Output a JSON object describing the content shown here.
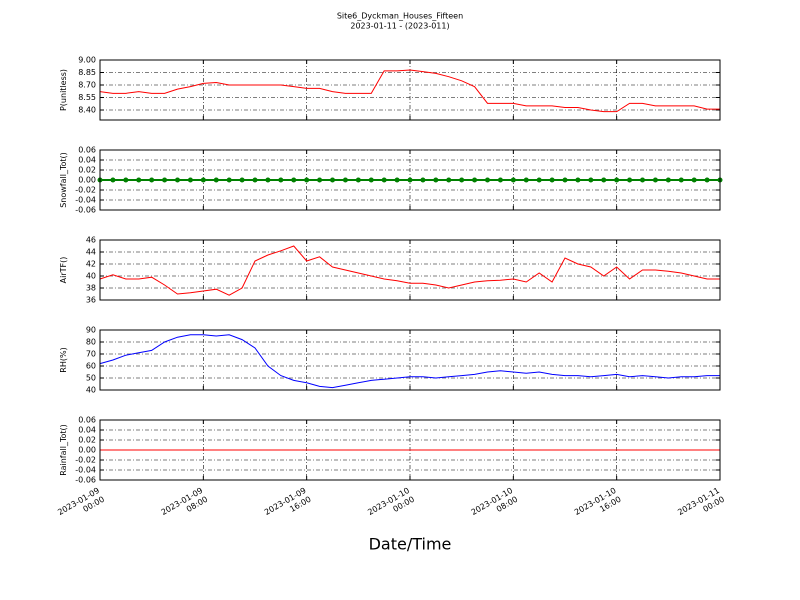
{
  "chart_data": [
    {
      "type": "line",
      "title": "Site6_Dyckman_Houses_Fifteen",
      "subtitle": "2023-01-11 - (2023-011)",
      "ylabel": "P(unitless)",
      "color": "#ff0000",
      "x": [
        "2023-01-09 00:00",
        "2023-01-09 01:00",
        "2023-01-09 02:00",
        "2023-01-09 03:00",
        "2023-01-09 04:00",
        "2023-01-09 05:00",
        "2023-01-09 06:00",
        "2023-01-09 07:00",
        "2023-01-09 08:00",
        "2023-01-09 09:00",
        "2023-01-09 10:00",
        "2023-01-09 11:00",
        "2023-01-09 12:00",
        "2023-01-09 13:00",
        "2023-01-09 14:00",
        "2023-01-09 15:00",
        "2023-01-09 16:00",
        "2023-01-09 17:00",
        "2023-01-09 18:00",
        "2023-01-09 19:00",
        "2023-01-09 20:00",
        "2023-01-09 21:00",
        "2023-01-09 22:00",
        "2023-01-09 23:00",
        "2023-01-10 00:00",
        "2023-01-10 01:00",
        "2023-01-10 02:00",
        "2023-01-10 03:00",
        "2023-01-10 04:00",
        "2023-01-10 05:00",
        "2023-01-10 06:00",
        "2023-01-10 07:00",
        "2023-01-10 08:00",
        "2023-01-10 09:00",
        "2023-01-10 10:00",
        "2023-01-10 11:00",
        "2023-01-10 12:00",
        "2023-01-10 13:00",
        "2023-01-10 14:00",
        "2023-01-10 15:00",
        "2023-01-10 16:00",
        "2023-01-10 17:00",
        "2023-01-10 18:00",
        "2023-01-10 19:00",
        "2023-01-10 20:00",
        "2023-01-10 21:00",
        "2023-01-10 22:00",
        "2023-01-10 23:00",
        "2023-01-11 00:00"
      ],
      "values": [
        8.62,
        8.6,
        8.6,
        8.62,
        8.6,
        8.6,
        8.65,
        8.68,
        8.72,
        8.73,
        8.7,
        8.7,
        8.7,
        8.7,
        8.7,
        8.68,
        8.66,
        8.66,
        8.62,
        8.6,
        8.6,
        8.6,
        8.87,
        8.87,
        8.88,
        8.86,
        8.84,
        8.8,
        8.75,
        8.68,
        8.48,
        8.48,
        8.48,
        8.45,
        8.45,
        8.45,
        8.43,
        8.43,
        8.4,
        8.38,
        8.38,
        8.48,
        8.48,
        8.45,
        8.45,
        8.45,
        8.45,
        8.41,
        8.41
      ],
      "ylim": [
        8.28,
        9.0
      ],
      "yticks": [
        {
          "value": 8.4,
          "label": "8.40"
        },
        8.55,
        {
          "value": 8.7,
          "label": "8.70"
        },
        8.85,
        {
          "value": 9.0,
          "label": "9.00"
        }
      ],
      "xlim": [
        "2023-01-09 00:00",
        "2023-01-11 00:00"
      ],
      "xticks": [
        "2023-01-09 00:00",
        "2023-01-09 08:00",
        "2023-01-09 16:00",
        "2023-01-10 00:00",
        "2023-01-10 08:00",
        "2023-01-10 16:00",
        "2023-01-11 00:00"
      ],
      "grid": true
    },
    {
      "type": "line",
      "ylabel": "Snowfall_Tot()",
      "color": "#008000",
      "marker": "o",
      "x": [
        "2023-01-09 00:00",
        "2023-01-09 01:00",
        "2023-01-09 02:00",
        "2023-01-09 03:00",
        "2023-01-09 04:00",
        "2023-01-09 05:00",
        "2023-01-09 06:00",
        "2023-01-09 07:00",
        "2023-01-09 08:00",
        "2023-01-09 09:00",
        "2023-01-09 10:00",
        "2023-01-09 11:00",
        "2023-01-09 12:00",
        "2023-01-09 13:00",
        "2023-01-09 14:00",
        "2023-01-09 15:00",
        "2023-01-09 16:00",
        "2023-01-09 17:00",
        "2023-01-09 18:00",
        "2023-01-09 19:00",
        "2023-01-09 20:00",
        "2023-01-09 21:00",
        "2023-01-09 22:00",
        "2023-01-09 23:00",
        "2023-01-10 00:00",
        "2023-01-10 01:00",
        "2023-01-10 02:00",
        "2023-01-10 03:00",
        "2023-01-10 04:00",
        "2023-01-10 05:00",
        "2023-01-10 06:00",
        "2023-01-10 07:00",
        "2023-01-10 08:00",
        "2023-01-10 09:00",
        "2023-01-10 10:00",
        "2023-01-10 11:00",
        "2023-01-10 12:00",
        "2023-01-10 13:00",
        "2023-01-10 14:00",
        "2023-01-10 15:00",
        "2023-01-10 16:00",
        "2023-01-10 17:00",
        "2023-01-10 18:00",
        "2023-01-10 19:00",
        "2023-01-10 20:00",
        "2023-01-10 21:00",
        "2023-01-10 22:00",
        "2023-01-10 23:00",
        "2023-01-11 00:00"
      ],
      "values": [
        0,
        0,
        0,
        0,
        0,
        0,
        0,
        0,
        0,
        0,
        0,
        0,
        0,
        0,
        0,
        0,
        0,
        0,
        0,
        0,
        0,
        0,
        0,
        0,
        0,
        0,
        0,
        0,
        0,
        0,
        0,
        0,
        0,
        0,
        0,
        0,
        0,
        0,
        0,
        0,
        0,
        0,
        0,
        0,
        0,
        0,
        0,
        0,
        0
      ],
      "ylim": [
        -0.06,
        0.06
      ],
      "yticks": [
        -0.06,
        -0.04,
        -0.02,
        {
          "value": 0,
          "label": "0.00"
        },
        0.02,
        0.04,
        0.06
      ],
      "xlim": [
        "2023-01-09 00:00",
        "2023-01-11 00:00"
      ],
      "xticks": [
        "2023-01-09 00:00",
        "2023-01-09 08:00",
        "2023-01-09 16:00",
        "2023-01-10 00:00",
        "2023-01-10 08:00",
        "2023-01-10 16:00",
        "2023-01-11 00:00"
      ],
      "grid": true
    },
    {
      "type": "line",
      "ylabel": "AirTF()",
      "color": "#ff0000",
      "x": [
        "2023-01-09 00:00",
        "2023-01-09 01:00",
        "2023-01-09 02:00",
        "2023-01-09 03:00",
        "2023-01-09 04:00",
        "2023-01-09 05:00",
        "2023-01-09 06:00",
        "2023-01-09 07:00",
        "2023-01-09 08:00",
        "2023-01-09 09:00",
        "2023-01-09 10:00",
        "2023-01-09 11:00",
        "2023-01-09 12:00",
        "2023-01-09 13:00",
        "2023-01-09 14:00",
        "2023-01-09 15:00",
        "2023-01-09 16:00",
        "2023-01-09 17:00",
        "2023-01-09 18:00",
        "2023-01-09 19:00",
        "2023-01-09 20:00",
        "2023-01-09 21:00",
        "2023-01-09 22:00",
        "2023-01-09 23:00",
        "2023-01-10 00:00",
        "2023-01-10 01:00",
        "2023-01-10 02:00",
        "2023-01-10 03:00",
        "2023-01-10 04:00",
        "2023-01-10 05:00",
        "2023-01-10 06:00",
        "2023-01-10 07:00",
        "2023-01-10 08:00",
        "2023-01-10 09:00",
        "2023-01-10 10:00",
        "2023-01-10 11:00",
        "2023-01-10 12:00",
        "2023-01-10 13:00",
        "2023-01-10 14:00",
        "2023-01-10 15:00",
        "2023-01-10 16:00",
        "2023-01-10 17:00",
        "2023-01-10 18:00",
        "2023-01-10 19:00",
        "2023-01-10 20:00",
        "2023-01-10 21:00",
        "2023-01-10 22:00",
        "2023-01-10 23:00",
        "2023-01-11 00:00"
      ],
      "values": [
        39.5,
        40.2,
        39.5,
        39.5,
        39.8,
        38.5,
        37,
        37.2,
        37.5,
        37.8,
        36.8,
        38,
        42.5,
        43.5,
        44.2,
        45,
        42.5,
        43.2,
        41.5,
        41,
        40.5,
        40,
        39.5,
        39.2,
        38.8,
        38.8,
        38.5,
        38,
        38.5,
        39,
        39.2,
        39.3,
        39.5,
        39,
        40.5,
        39,
        43,
        42,
        41.5,
        40,
        41.5,
        39.5,
        41,
        41,
        40.8,
        40.5,
        40,
        39.5,
        39.5
      ],
      "ylim": [
        36,
        46
      ],
      "yticks": [
        36,
        38,
        40,
        42,
        44,
        46
      ],
      "xlim": [
        "2023-01-09 00:00",
        "2023-01-11 00:00"
      ],
      "xticks": [
        "2023-01-09 00:00",
        "2023-01-09 08:00",
        "2023-01-09 16:00",
        "2023-01-10 00:00",
        "2023-01-10 08:00",
        "2023-01-10 16:00",
        "2023-01-11 00:00"
      ],
      "grid": true
    },
    {
      "type": "line",
      "ylabel": "RH(%)",
      "color": "#0000ff",
      "x": [
        "2023-01-09 00:00",
        "2023-01-09 01:00",
        "2023-01-09 02:00",
        "2023-01-09 03:00",
        "2023-01-09 04:00",
        "2023-01-09 05:00",
        "2023-01-09 06:00",
        "2023-01-09 07:00",
        "2023-01-09 08:00",
        "2023-01-09 09:00",
        "2023-01-09 10:00",
        "2023-01-09 11:00",
        "2023-01-09 12:00",
        "2023-01-09 13:00",
        "2023-01-09 14:00",
        "2023-01-09 15:00",
        "2023-01-09 16:00",
        "2023-01-09 17:00",
        "2023-01-09 18:00",
        "2023-01-09 19:00",
        "2023-01-09 20:00",
        "2023-01-09 21:00",
        "2023-01-09 22:00",
        "2023-01-09 23:00",
        "2023-01-10 00:00",
        "2023-01-10 01:00",
        "2023-01-10 02:00",
        "2023-01-10 03:00",
        "2023-01-10 04:00",
        "2023-01-10 05:00",
        "2023-01-10 06:00",
        "2023-01-10 07:00",
        "2023-01-10 08:00",
        "2023-01-10 09:00",
        "2023-01-10 10:00",
        "2023-01-10 11:00",
        "2023-01-10 12:00",
        "2023-01-10 13:00",
        "2023-01-10 14:00",
        "2023-01-10 15:00",
        "2023-01-10 16:00",
        "2023-01-10 17:00",
        "2023-01-10 18:00",
        "2023-01-10 19:00",
        "2023-01-10 20:00",
        "2023-01-10 21:00",
        "2023-01-10 22:00",
        "2023-01-10 23:00",
        "2023-01-11 00:00"
      ],
      "values": [
        62,
        65,
        69,
        71,
        73,
        80,
        84,
        86,
        86,
        85,
        86,
        82,
        75,
        60,
        52,
        48,
        46,
        43,
        42,
        44,
        46,
        48,
        49,
        50,
        51,
        51,
        50,
        51,
        52,
        53,
        55,
        56,
        55,
        54,
        55,
        53,
        52,
        52,
        51,
        52,
        53,
        51,
        52,
        51,
        50,
        51,
        51,
        52,
        52
      ],
      "ylim": [
        40,
        90
      ],
      "yticks": [
        40,
        50,
        60,
        70,
        80,
        90
      ],
      "xlim": [
        "2023-01-09 00:00",
        "2023-01-11 00:00"
      ],
      "xticks": [
        "2023-01-09 00:00",
        "2023-01-09 08:00",
        "2023-01-09 16:00",
        "2023-01-10 00:00",
        "2023-01-10 08:00",
        "2023-01-10 16:00",
        "2023-01-11 00:00"
      ],
      "grid": true
    },
    {
      "type": "line",
      "ylabel": "Rainfall_Tot()",
      "xlabel": "Date/Time",
      "color": "#ff0000",
      "x": [
        "2023-01-09 00:00",
        "2023-01-09 01:00",
        "2023-01-09 02:00",
        "2023-01-09 03:00",
        "2023-01-09 04:00",
        "2023-01-09 05:00",
        "2023-01-09 06:00",
        "2023-01-09 07:00",
        "2023-01-09 08:00",
        "2023-01-09 09:00",
        "2023-01-09 10:00",
        "2023-01-09 11:00",
        "2023-01-09 12:00",
        "2023-01-09 13:00",
        "2023-01-09 14:00",
        "2023-01-09 15:00",
        "2023-01-09 16:00",
        "2023-01-09 17:00",
        "2023-01-09 18:00",
        "2023-01-09 19:00",
        "2023-01-09 20:00",
        "2023-01-09 21:00",
        "2023-01-09 22:00",
        "2023-01-09 23:00",
        "2023-01-10 00:00",
        "2023-01-10 01:00",
        "2023-01-10 02:00",
        "2023-01-10 03:00",
        "2023-01-10 04:00",
        "2023-01-10 05:00",
        "2023-01-10 06:00",
        "2023-01-10 07:00",
        "2023-01-10 08:00",
        "2023-01-10 09:00",
        "2023-01-10 10:00",
        "2023-01-10 11:00",
        "2023-01-10 12:00",
        "2023-01-10 13:00",
        "2023-01-10 14:00",
        "2023-01-10 15:00",
        "2023-01-10 16:00",
        "2023-01-10 17:00",
        "2023-01-10 18:00",
        "2023-01-10 19:00",
        "2023-01-10 20:00",
        "2023-01-10 21:00",
        "2023-01-10 22:00",
        "2023-01-10 23:00",
        "2023-01-11 00:00"
      ],
      "values": [
        0,
        0,
        0,
        0,
        0,
        0,
        0,
        0,
        0,
        0,
        0,
        0,
        0,
        0,
        0,
        0,
        0,
        0,
        0,
        0,
        0,
        0,
        0,
        0,
        0,
        0,
        0,
        0,
        0,
        0,
        0,
        0,
        0,
        0,
        0,
        0,
        0,
        0,
        0,
        0,
        0,
        0,
        0,
        0,
        0,
        0,
        0,
        0,
        0
      ],
      "ylim": [
        -0.06,
        0.06
      ],
      "yticks": [
        -0.06,
        -0.04,
        -0.02,
        {
          "value": 0,
          "label": "0.00"
        },
        0.02,
        0.04,
        0.06
      ],
      "xlim": [
        "2023-01-09 00:00",
        "2023-01-11 00:00"
      ],
      "xticks": [
        "2023-01-09 00:00",
        "2023-01-09 08:00",
        "2023-01-09 16:00",
        "2023-01-10 00:00",
        "2023-01-10 08:00",
        "2023-01-10 16:00",
        "2023-01-11 00:00"
      ],
      "grid": true
    }
  ]
}
